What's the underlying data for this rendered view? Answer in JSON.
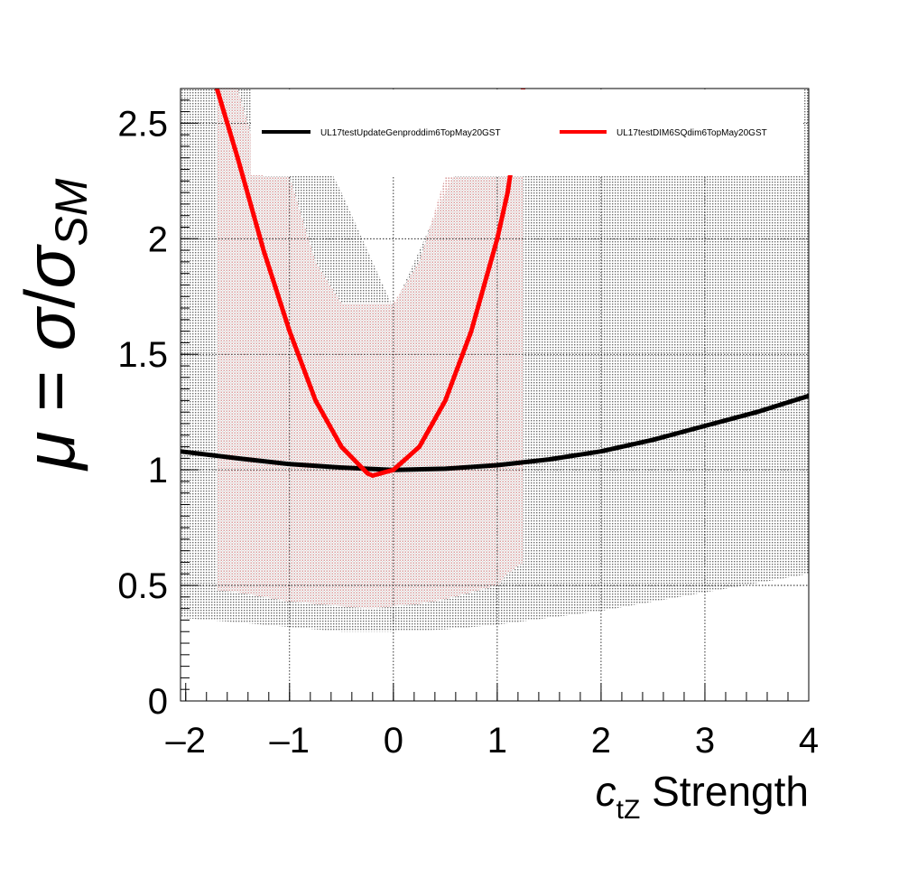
{
  "chart_data": {
    "type": "line",
    "title": "",
    "ylabel": {
      "mu": "μ",
      "eq": " = ",
      "sigma": "σ",
      "slash": "/",
      "sm": "SM"
    },
    "xlabel": {
      "c": "c",
      "sub": "tZ",
      "rest": " Strength"
    },
    "xlim": [
      -2.05,
      4.0
    ],
    "ylim": [
      0,
      2.65
    ],
    "xticks": [
      -2,
      -1,
      0,
      1,
      2,
      3,
      4
    ],
    "xtick_labels": [
      "–2",
      "–1",
      "0",
      "1",
      "2",
      "3",
      "4"
    ],
    "yticks": [
      0,
      0.5,
      1,
      1.5,
      2,
      2.5
    ],
    "ytick_labels": [
      "0",
      "0.5",
      "1",
      "1.5",
      "2",
      "2.5"
    ],
    "grid": true,
    "legend_position": "top",
    "series": [
      {
        "name": "UL17testUpdateGenproddim6TopMay20GST",
        "color": "#000000",
        "x": [
          -2.05,
          -1.5,
          -1.0,
          -0.5,
          0.0,
          0.5,
          1.0,
          1.5,
          2.0,
          2.5,
          3.0,
          3.5,
          4.0
        ],
        "y": [
          1.08,
          1.05,
          1.025,
          1.01,
          1.0,
          1.005,
          1.02,
          1.045,
          1.08,
          1.13,
          1.19,
          1.25,
          1.32
        ],
        "band_upper": [
          2.65,
          2.65,
          2.65,
          2.2,
          1.7,
          2.2,
          2.65,
          2.65,
          2.65,
          2.65,
          2.65,
          2.65,
          2.65
        ],
        "band_lower": [
          0.36,
          0.34,
          0.32,
          0.3,
          0.3,
          0.31,
          0.33,
          0.36,
          0.39,
          0.43,
          0.47,
          0.51,
          0.55
        ]
      },
      {
        "name": "UL17testDIM6SQdim6TopMay20GST",
        "color": "#ff0000",
        "x": [
          -1.7,
          -1.5,
          -1.25,
          -1.0,
          -0.75,
          -0.5,
          -0.25,
          -0.2,
          0.0,
          0.25,
          0.5,
          0.75,
          1.0,
          1.1,
          1.25
        ],
        "y": [
          2.65,
          2.35,
          1.95,
          1.6,
          1.3,
          1.1,
          0.985,
          0.975,
          1.0,
          1.1,
          1.3,
          1.6,
          2.0,
          2.2,
          2.65
        ],
        "band_upper": [
          2.65,
          2.65,
          2.27,
          2.27,
          1.9,
          1.72,
          1.72,
          1.72,
          1.72,
          1.9,
          2.27,
          2.27,
          2.27,
          2.27,
          2.27
        ],
        "band_lower": [
          0.48,
          0.47,
          0.45,
          0.43,
          0.42,
          0.41,
          0.4,
          0.4,
          0.41,
          0.42,
          0.44,
          0.47,
          0.5,
          0.55,
          0.6
        ]
      }
    ]
  }
}
